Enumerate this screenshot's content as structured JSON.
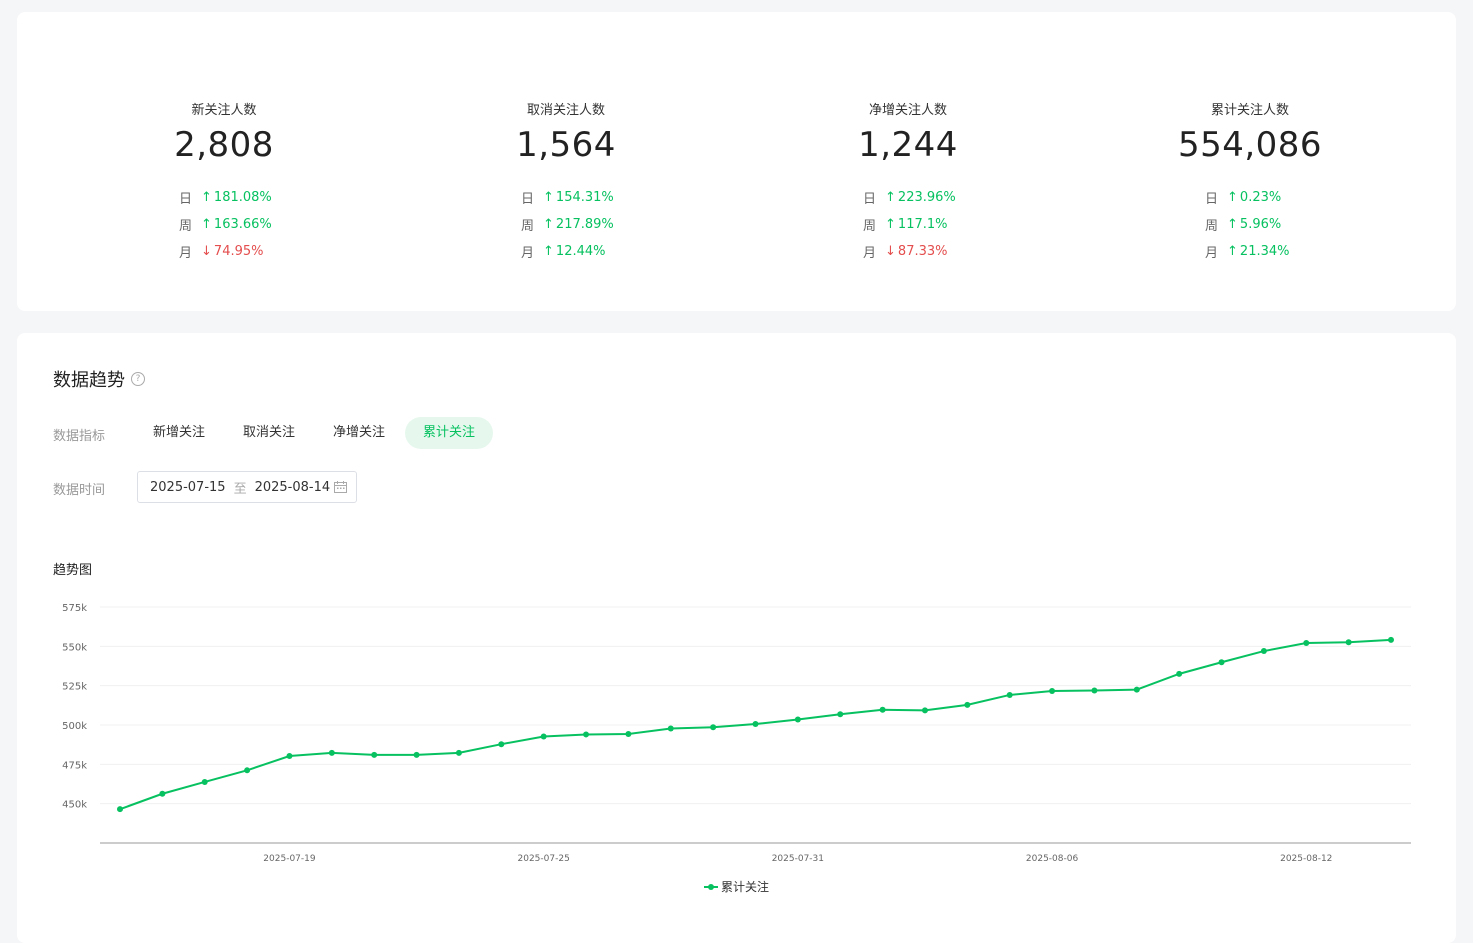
{
  "stats": [
    {
      "label": "新关注人数",
      "value": "2,808",
      "changes": [
        {
          "period": "日",
          "dir": "up",
          "arrow": "↑",
          "text": "181.08%"
        },
        {
          "period": "周",
          "dir": "up",
          "arrow": "↑",
          "text": "163.66%"
        },
        {
          "period": "月",
          "dir": "down",
          "arrow": "↓",
          "text": "74.95%"
        }
      ]
    },
    {
      "label": "取消关注人数",
      "value": "1,564",
      "changes": [
        {
          "period": "日",
          "dir": "up",
          "arrow": "↑",
          "text": "154.31%"
        },
        {
          "period": "周",
          "dir": "up",
          "arrow": "↑",
          "text": "217.89%"
        },
        {
          "period": "月",
          "dir": "up",
          "arrow": "↑",
          "text": "12.44%"
        }
      ]
    },
    {
      "label": "净增关注人数",
      "value": "1,244",
      "changes": [
        {
          "period": "日",
          "dir": "up",
          "arrow": "↑",
          "text": "223.96%"
        },
        {
          "period": "周",
          "dir": "up",
          "arrow": "↑",
          "text": "117.1%"
        },
        {
          "period": "月",
          "dir": "down",
          "arrow": "↓",
          "text": "87.33%"
        }
      ]
    },
    {
      "label": "累计关注人数",
      "value": "554,086",
      "changes": [
        {
          "period": "日",
          "dir": "up",
          "arrow": "↑",
          "text": "0.23%"
        },
        {
          "period": "周",
          "dir": "up",
          "arrow": "↑",
          "text": "5.96%"
        },
        {
          "period": "月",
          "dir": "up",
          "arrow": "↑",
          "text": "21.34%"
        }
      ]
    }
  ],
  "trend": {
    "title": "数据趋势",
    "help_icon": "?",
    "metric_label": "数据指标",
    "metric_tabs": [
      "新增关注",
      "取消关注",
      "净增关注",
      "累计关注"
    ],
    "active_tab": 3,
    "time_label": "数据时间",
    "date_start": "2025-07-15",
    "date_sep": "至",
    "date_end": "2025-08-14",
    "chart_title": "趋势图",
    "legend_label": "累计关注"
  },
  "colors": {
    "accent": "#07c160",
    "down": "#e44e4e"
  },
  "chart_data": {
    "type": "line",
    "title": "趋势图",
    "x": [
      "2025-07-15",
      "2025-07-16",
      "2025-07-17",
      "2025-07-18",
      "2025-07-19",
      "2025-07-20",
      "2025-07-21",
      "2025-07-22",
      "2025-07-23",
      "2025-07-24",
      "2025-07-25",
      "2025-07-26",
      "2025-07-27",
      "2025-07-28",
      "2025-07-29",
      "2025-07-30",
      "2025-07-31",
      "2025-08-01",
      "2025-08-02",
      "2025-08-03",
      "2025-08-04",
      "2025-08-05",
      "2025-08-06",
      "2025-08-07",
      "2025-08-08",
      "2025-08-09",
      "2025-08-10",
      "2025-08-11",
      "2025-08-12",
      "2025-08-13",
      "2025-08-14"
    ],
    "x_tick_labels": [
      "2025-07-19",
      "2025-07-25",
      "2025-07-31",
      "2025-08-06",
      "2025-08-12"
    ],
    "y_ticks": [
      450000,
      475000,
      500000,
      525000,
      550000,
      575000
    ],
    "y_tick_labels": [
      "450k",
      "475k",
      "500k",
      "525k",
      "550k",
      "575k"
    ],
    "ylim": [
      425000,
      575000
    ],
    "grid": true,
    "legend": "bottom-center",
    "series": [
      {
        "name": "累计关注",
        "color": "#07c160",
        "values": [
          446500,
          456300,
          463800,
          471200,
          480300,
          482300,
          481000,
          481000,
          482300,
          487800,
          492700,
          494000,
          494300,
          497800,
          498600,
          500600,
          503500,
          506800,
          509700,
          509300,
          512800,
          519100,
          521600,
          521900,
          522500,
          532500,
          539900,
          547000,
          552100,
          552600,
          554086
        ]
      }
    ]
  }
}
